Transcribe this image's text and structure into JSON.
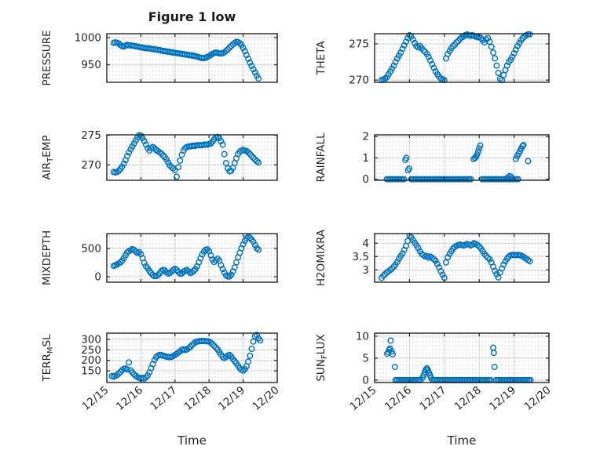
{
  "figure": {
    "title": "Figure 1 low",
    "xlabel": "Time"
  },
  "style": {
    "marker_color": "#0072BD",
    "axis_color": "#262626",
    "grid_color": "#d4d4d4",
    "minor_dot_color": "#c4c4c4",
    "text_color": "#262626",
    "background": "#ffffff"
  },
  "x_axis": {
    "label": "Time",
    "tick_labels": [
      "12/15",
      "12/16",
      "12/17",
      "12/18",
      "12/19",
      "12/20"
    ],
    "tick_values": [
      0,
      1,
      2,
      3,
      4,
      5
    ],
    "range_days": [
      0,
      5
    ]
  },
  "chart_data": [
    {
      "id": "pressure",
      "type": "scatter",
      "marker": "o",
      "row": 0,
      "col": 0,
      "ylabel": "PRESSURE",
      "ylabel_parts": [
        {
          "text": "PRESSURE"
        }
      ],
      "yticks": [
        950,
        1000
      ],
      "ytick_labels": [
        "950",
        "1000"
      ],
      "ylim": [
        918,
        1007
      ],
      "series": {
        "x0": 0.2,
        "dx": 0.05,
        "y": [
          990,
          991,
          990.5,
          989,
          986,
          984,
          983.5,
          985,
          986.5,
          986,
          985.5,
          985,
          984.5,
          984,
          983.5,
          982.5,
          982,
          981.5,
          981,
          980.5,
          980.5,
          980,
          979.5,
          979,
          978.5,
          978,
          977.5,
          977,
          976,
          975.5,
          975,
          974.5,
          974,
          973.5,
          973,
          972.5,
          972,
          971.5,
          971,
          970.5,
          970,
          969.5,
          969,
          968.5,
          968,
          967.5,
          967,
          966.5,
          966,
          965,
          964,
          963,
          962.5,
          962,
          963,
          964.5,
          966,
          968,
          970,
          971.5,
          972.5,
          972,
          971,
          970.5,
          971.5,
          973,
          975.5,
          978.5,
          981.5,
          984.5,
          987.5,
          990,
          992,
          991.5,
          989.5,
          986,
          981,
          975,
          968,
          961,
          954,
          948,
          942,
          936,
          930,
          925
        ]
      }
    },
    {
      "id": "theta",
      "type": "scatter",
      "marker": "o",
      "row": 0,
      "col": 1,
      "ylabel": "THETA",
      "ylabel_parts": [
        {
          "text": "THETA"
        }
      ],
      "yticks": [
        270,
        275
      ],
      "ytick_labels": [
        "270",
        "275"
      ],
      "ylim": [
        269.7,
        276.4
      ],
      "series": {
        "x0": 0.2,
        "dx": 0.05,
        "y": [
          270.0,
          270.1,
          270.2,
          270.4,
          270.8,
          271.2,
          271.6,
          272.0,
          272.5,
          273.0,
          273.4,
          273.8,
          274.3,
          274.8,
          275.3,
          275.8,
          276.2,
          276.0,
          275.6,
          275.1,
          274.7,
          274.5,
          274.7,
          274.4,
          274.1,
          273.9,
          273.6,
          273.2,
          272.7,
          272.2,
          271.7,
          271.2,
          270.8,
          270.5,
          270.2,
          270.1,
          270.0,
          273.0,
          273.6,
          274.0,
          274.4,
          274.7,
          274.9,
          275.2,
          275.4,
          275.7,
          275.9,
          276.0,
          276.2,
          276.3,
          276.2,
          276.1,
          276.2,
          276.1,
          276.0,
          275.9,
          275.9,
          275.8,
          275.5,
          275.2,
          275.6,
          275.8,
          275.3,
          274.6,
          273.8,
          273.0,
          272.0,
          271.0,
          270.2,
          270.0,
          270.7,
          271.4,
          272.0,
          272.5,
          272.8,
          273.2,
          273.7,
          274.2,
          274.7,
          275.1,
          275.5,
          275.8,
          276.0,
          276.2,
          276.3,
          276.3
        ]
      }
    },
    {
      "id": "air-temp",
      "type": "scatter",
      "marker": "o",
      "row": 1,
      "col": 0,
      "ylabel": "AIR_TEMP",
      "ylabel_parts": [
        {
          "text": "AIR"
        },
        {
          "text": "T",
          "sub": true
        },
        {
          "text": "EMP"
        }
      ],
      "yticks": [
        270,
        275
      ],
      "ytick_labels": [
        "270",
        "275"
      ],
      "ylim": [
        267.4,
        275.05
      ],
      "series": {
        "x0": 0.2,
        "dx": 0.05,
        "y": [
          268.8,
          268.7,
          268.8,
          269.0,
          269.3,
          269.7,
          270.2,
          270.8,
          271.5,
          272.1,
          272.6,
          273.1,
          273.6,
          274.1,
          274.6,
          275.0,
          274.9,
          274.5,
          274.0,
          273.4,
          272.8,
          272.4,
          272.8,
          273.0,
          272.8,
          272.5,
          272.3,
          272.1,
          271.9,
          271.6,
          271.3,
          270.9,
          270.4,
          269.9,
          269.6,
          269.4,
          269.1,
          268.0,
          269.6,
          270.7,
          271.7,
          272.4,
          272.8,
          273.0,
          273.1,
          273.1,
          273.2,
          273.2,
          273.2,
          273.3,
          273.3,
          273.3,
          273.3,
          273.4,
          273.4,
          273.4,
          273.5,
          273.6,
          273.9,
          274.3,
          274.6,
          274.7,
          274.5,
          274.0,
          273.4,
          271.8,
          270.3,
          269.4,
          268.9,
          269.0,
          269.5,
          270.3,
          271.1,
          271.8,
          272.2,
          272.4,
          272.5,
          272.4,
          272.3,
          272.1,
          271.8,
          271.5,
          271.2,
          270.9,
          270.6,
          270.4
        ]
      }
    },
    {
      "id": "rainfall",
      "type": "scatter",
      "marker": "o",
      "row": 1,
      "col": 1,
      "ylabel": "RAINFALL",
      "ylabel_parts": [
        {
          "text": "RAINFALL"
        }
      ],
      "yticks": [
        0,
        1,
        2
      ],
      "ytick_labels": [
        "0",
        "1",
        "2"
      ],
      "ylim": [
        -0.05,
        2.08
      ],
      "series": {
        "zero_runs": [
          [
            0.35,
            0.85
          ],
          [
            1.05,
            2.8
          ],
          [
            3.08,
            4.15
          ]
        ],
        "points": [
          [
            0.88,
            0.9
          ],
          [
            0.91,
            1.0
          ],
          [
            0.96,
            0.42
          ],
          [
            0.99,
            0.5
          ],
          [
            2.84,
            0.95
          ],
          [
            2.88,
            1.0
          ],
          [
            2.91,
            1.06
          ],
          [
            2.94,
            1.16
          ],
          [
            2.97,
            1.3
          ],
          [
            3.0,
            1.45
          ],
          [
            3.03,
            1.58
          ],
          [
            3.82,
            0.08
          ],
          [
            3.87,
            0.15
          ],
          [
            3.92,
            0.1
          ],
          [
            4.05,
            0.95
          ],
          [
            4.09,
            1.08
          ],
          [
            4.13,
            1.2
          ],
          [
            4.17,
            1.32
          ],
          [
            4.21,
            1.45
          ],
          [
            4.24,
            1.55
          ],
          [
            4.27,
            1.6
          ],
          [
            4.4,
            0.85
          ]
        ]
      }
    },
    {
      "id": "mixdepth",
      "type": "scatter",
      "marker": "o",
      "row": 2,
      "col": 0,
      "ylabel": "MIXDEPTH",
      "ylabel_parts": [
        {
          "text": "MIXDEPTH"
        }
      ],
      "yticks": [
        0,
        500
      ],
      "ytick_labels": [
        "0",
        "500"
      ],
      "ylim": [
        -97,
        764
      ],
      "series": {
        "x0": 0.2,
        "dx": 0.05,
        "y": [
          190,
          205,
          215,
          235,
          255,
          285,
          330,
          380,
          430,
          455,
          470,
          490,
          475,
          445,
          420,
          435,
          400,
          330,
          245,
          185,
          150,
          105,
          65,
          30,
          10,
          10,
          30,
          60,
          100,
          120,
          110,
          80,
          55,
          65,
          95,
          120,
          140,
          120,
          85,
          55,
          60,
          90,
          110,
          120,
          95,
          65,
          75,
          105,
          135,
          185,
          255,
          325,
          395,
          445,
          475,
          485,
          450,
          380,
          305,
          260,
          290,
          320,
          285,
          205,
          135,
          75,
          25,
          5,
          5,
          35,
          95,
          165,
          255,
          345,
          425,
          505,
          575,
          635,
          680,
          705,
          690,
          660,
          620,
          560,
          505,
          480
        ]
      }
    },
    {
      "id": "h2omixra",
      "type": "scatter",
      "marker": "o",
      "row": 2,
      "col": 1,
      "ylabel": "H2OMIXRA",
      "ylabel_parts": [
        {
          "text": "H2OMIXRA"
        }
      ],
      "yticks": [
        3,
        3.5,
        4
      ],
      "ytick_labels": [
        "3",
        "3.5",
        "4"
      ],
      "ylim": [
        2.54,
        4.36
      ],
      "series": {
        "x0": 0.2,
        "dx": 0.05,
        "y": [
          2.7,
          2.78,
          2.84,
          2.9,
          2.95,
          3.0,
          3.05,
          3.12,
          3.2,
          3.3,
          3.42,
          3.52,
          3.62,
          3.75,
          3.9,
          4.08,
          4.28,
          4.22,
          4.12,
          4.02,
          3.92,
          3.82,
          3.7,
          3.6,
          3.55,
          3.5,
          3.52,
          3.46,
          3.5,
          3.45,
          3.4,
          3.34,
          3.22,
          3.1,
          2.95,
          2.82,
          2.7,
          3.28,
          3.48,
          3.6,
          3.7,
          3.8,
          3.86,
          3.9,
          3.93,
          3.95,
          3.93,
          3.91,
          3.94,
          3.97,
          3.95,
          3.92,
          3.95,
          4.0,
          3.97,
          3.93,
          3.88,
          3.8,
          3.7,
          3.6,
          3.52,
          3.46,
          3.4,
          3.28,
          3.12,
          2.96,
          2.84,
          2.72,
          2.9,
          3.05,
          3.2,
          3.32,
          3.42,
          3.5,
          3.55,
          3.56,
          3.56,
          3.55,
          3.56,
          3.55,
          3.54,
          3.5,
          3.46,
          3.42,
          3.37,
          3.32
        ]
      }
    },
    {
      "id": "terr-msl",
      "type": "scatter",
      "marker": "o",
      "row": 3,
      "col": 0,
      "ylabel": "TERR_MSL",
      "ylabel_parts": [
        {
          "text": "TERR"
        },
        {
          "text": "M",
          "sub": true
        },
        {
          "text": "SL"
        }
      ],
      "yticks": [
        150,
        200,
        250,
        300
      ],
      "ytick_labels": [
        "150",
        "200",
        "250",
        "300"
      ],
      "ylim": [
        94,
        330
      ],
      "series": {
        "x0": 0.15,
        "dx": 0.05,
        "y": [
          125,
          122,
          126,
          130,
          137,
          145,
          153,
          159,
          161,
          157,
          190,
          152,
          142,
          133,
          126,
          120,
          116,
          113,
          117,
          112,
          118,
          128,
          143,
          162,
          182,
          202,
          215,
          222,
          226,
          225,
          222,
          220,
          218,
          216,
          215,
          217,
          221,
          226,
          231,
          237,
          243,
          250,
          253,
          249,
          252,
          258,
          265,
          273,
          280,
          287,
          290,
          291,
          292,
          292,
          292,
          292,
          291,
          290,
          285,
          277,
          269,
          261,
          252,
          240,
          228,
          216,
          211,
          217,
          223,
          226,
          218,
          206,
          196,
          187,
          175,
          163,
          155,
          151,
          158,
          172,
          194,
          222,
          255,
          290,
          315,
          322,
          305,
          295
        ]
      }
    },
    {
      "id": "sun-flux",
      "type": "scatter",
      "marker": "o",
      "row": 3,
      "col": 1,
      "ylabel": "SUN_FLUX",
      "ylabel_parts": [
        {
          "text": "SUN"
        },
        {
          "text": "F",
          "sub": true
        },
        {
          "text": "LUX"
        }
      ],
      "yticks": [
        0,
        5,
        10
      ],
      "ytick_labels": [
        "0",
        "5",
        "10"
      ],
      "ylim": [
        -0.55,
        10.7
      ],
      "series": {
        "zero_runs": [
          [
            0.6,
            1.36
          ],
          [
            1.66,
            3.36
          ],
          [
            3.48,
            4.5
          ]
        ],
        "points": [
          [
            0.36,
            6.0
          ],
          [
            0.39,
            6.4
          ],
          [
            0.42,
            6.9
          ],
          [
            0.44,
            7.2
          ],
          [
            0.46,
            9.0
          ],
          [
            0.49,
            6.5
          ],
          [
            0.52,
            5.9
          ],
          [
            0.58,
            3.0
          ],
          [
            1.38,
            0.6
          ],
          [
            1.41,
            1.2
          ],
          [
            1.44,
            1.9
          ],
          [
            1.47,
            2.4
          ],
          [
            1.5,
            2.7
          ],
          [
            1.53,
            2.3
          ],
          [
            1.56,
            1.7
          ],
          [
            1.59,
            1.1
          ],
          [
            1.62,
            0.5
          ],
          [
            3.4,
            7.4
          ],
          [
            3.42,
            6.2
          ],
          [
            3.44,
            3.0
          ]
        ]
      }
    }
  ]
}
